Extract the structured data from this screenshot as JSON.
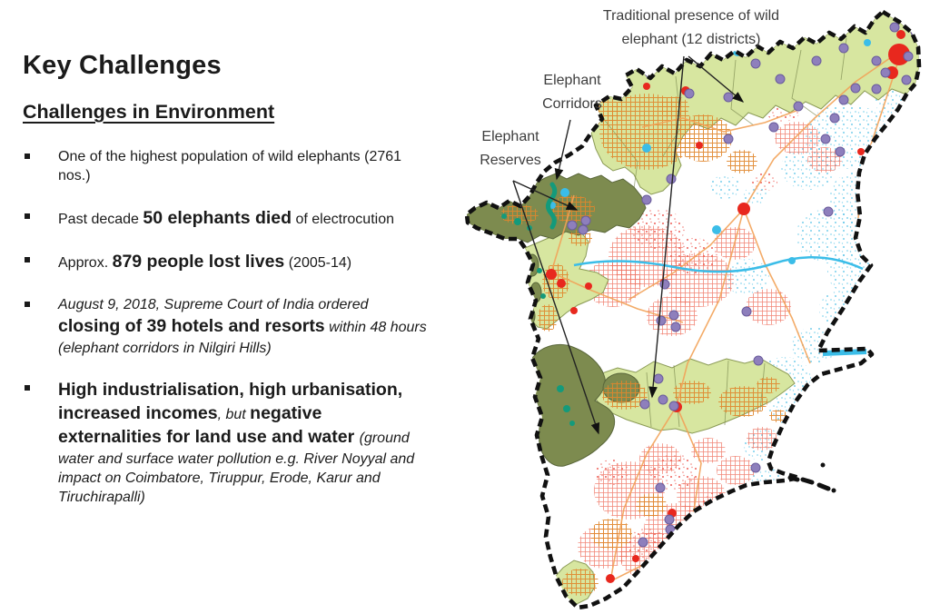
{
  "slide": {
    "title": "Key Challenges",
    "subtitle": "Challenges in Environment",
    "bullets": [
      {
        "segments": [
          {
            "text": "One of the highest population of wild elephants (2761 nos.)",
            "style": "normal"
          }
        ]
      },
      {
        "segments": [
          {
            "text": "Past decade ",
            "style": "normal"
          },
          {
            "text": "50 elephants died",
            "style": "bold-large"
          },
          {
            "text": " of electrocution",
            "style": "normal"
          }
        ]
      },
      {
        "segments": [
          {
            "text": "Approx. ",
            "style": "normal"
          },
          {
            "text": "879 people lost lives",
            "style": "bold-large"
          },
          {
            "text": " (2005-14)",
            "style": "normal"
          }
        ]
      },
      {
        "segments": [
          {
            "text": "August 9, 2018, Supreme Court of India ordered ",
            "style": "italic"
          },
          {
            "text": "closing of 39 hotels and resorts",
            "style": "bold-large"
          },
          {
            "text": " within 48 hours (elephant corridors in Nilgiri Hills)",
            "style": "italic"
          }
        ]
      },
      {
        "segments": [
          {
            "text": "High industrialisation, high urbanisation, increased incomes",
            "style": "bold-large"
          },
          {
            "text": ", but ",
            "style": "italic"
          },
          {
            "text": "negative externalities for land use and water ",
            "style": "bold-large"
          },
          {
            "text": "(ground water and surface water pollution e.g. River Noyyal and impact on Coimbatore, Tiruppur, Erode, Karur and Tiruchirapalli)",
            "style": "italic"
          }
        ]
      }
    ]
  },
  "map": {
    "region": "Tamil Nadu",
    "annotations": {
      "traditional": "Traditional presence of wild elephant (12 districts)",
      "corridors": "Elephant Corridors",
      "reserves": "Elephant Reserves"
    },
    "colors": {
      "district_green": "#d7e6a0",
      "reserve_olive": "#7d8b4f",
      "corridor_teal": "#149a7b",
      "hatch_orange": "#e0862c",
      "red_hatch": "#ee6a58",
      "urban_red": "#e8281e",
      "speckle_blue": "#5fc6e8",
      "dot_purple": "#8e7fbc",
      "boundary_black": "#111111",
      "road_orange": "#f2a258",
      "water_cyan": "#3bbde8"
    }
  }
}
